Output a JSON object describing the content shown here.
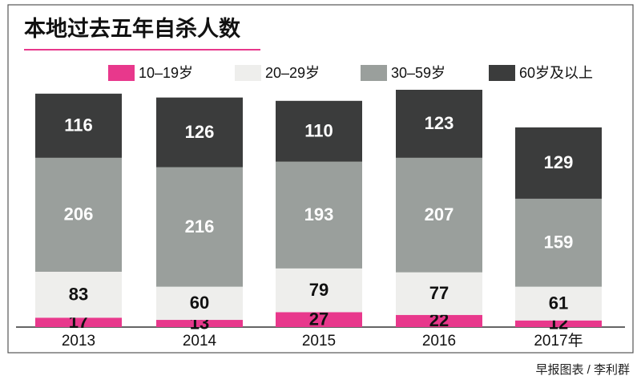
{
  "chart_data": {
    "type": "stacked-bar",
    "title": "本地过去五年自杀人数",
    "source": "早报图表 / 李利群",
    "categories": [
      "2013",
      "2014",
      "2015",
      "2016",
      "2017年"
    ],
    "series": [
      {
        "name": "10–19岁",
        "color": "#e8388c",
        "values": [
          17,
          13,
          27,
          22,
          12
        ]
      },
      {
        "name": "20–29岁",
        "color": "#eeeeec",
        "values": [
          83,
          60,
          79,
          77,
          61
        ]
      },
      {
        "name": "30–59岁",
        "color": "#9a9f9c",
        "values": [
          206,
          216,
          193,
          207,
          159
        ]
      },
      {
        "name": "60岁及以上",
        "color": "#3b3c3c",
        "values": [
          116,
          126,
          110,
          123,
          129
        ]
      }
    ]
  }
}
